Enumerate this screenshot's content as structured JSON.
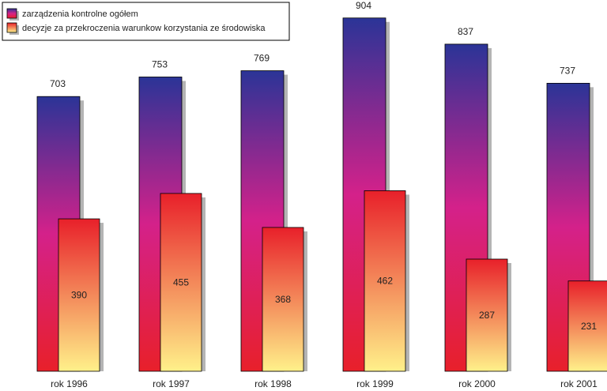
{
  "chart_data": {
    "type": "bar",
    "categories": [
      "rok 1996",
      "rok 1997",
      "rok 1998",
      "rok 1999",
      "rok 2000",
      "rok 2001"
    ],
    "series": [
      {
        "name": "zarządzenia kontrolne ogółem",
        "values": [
          703,
          753,
          769,
          904,
          837,
          737
        ]
      },
      {
        "name": "decyzje za przekroczenia warunkow korzystania ze środowiska",
        "values": [
          390,
          455,
          368,
          462,
          287,
          231
        ]
      }
    ],
    "ylim": [
      0,
      950
    ],
    "grid": false,
    "legend_position": "top-left",
    "colors": {
      "series1_top": "#2b3497",
      "series1_mid": "#d4218a",
      "series1_bottom": "#e8202a",
      "series2_top": "#e8202a",
      "series2_bottom": "#fff18a",
      "shadow": "#b4b4b4"
    }
  }
}
